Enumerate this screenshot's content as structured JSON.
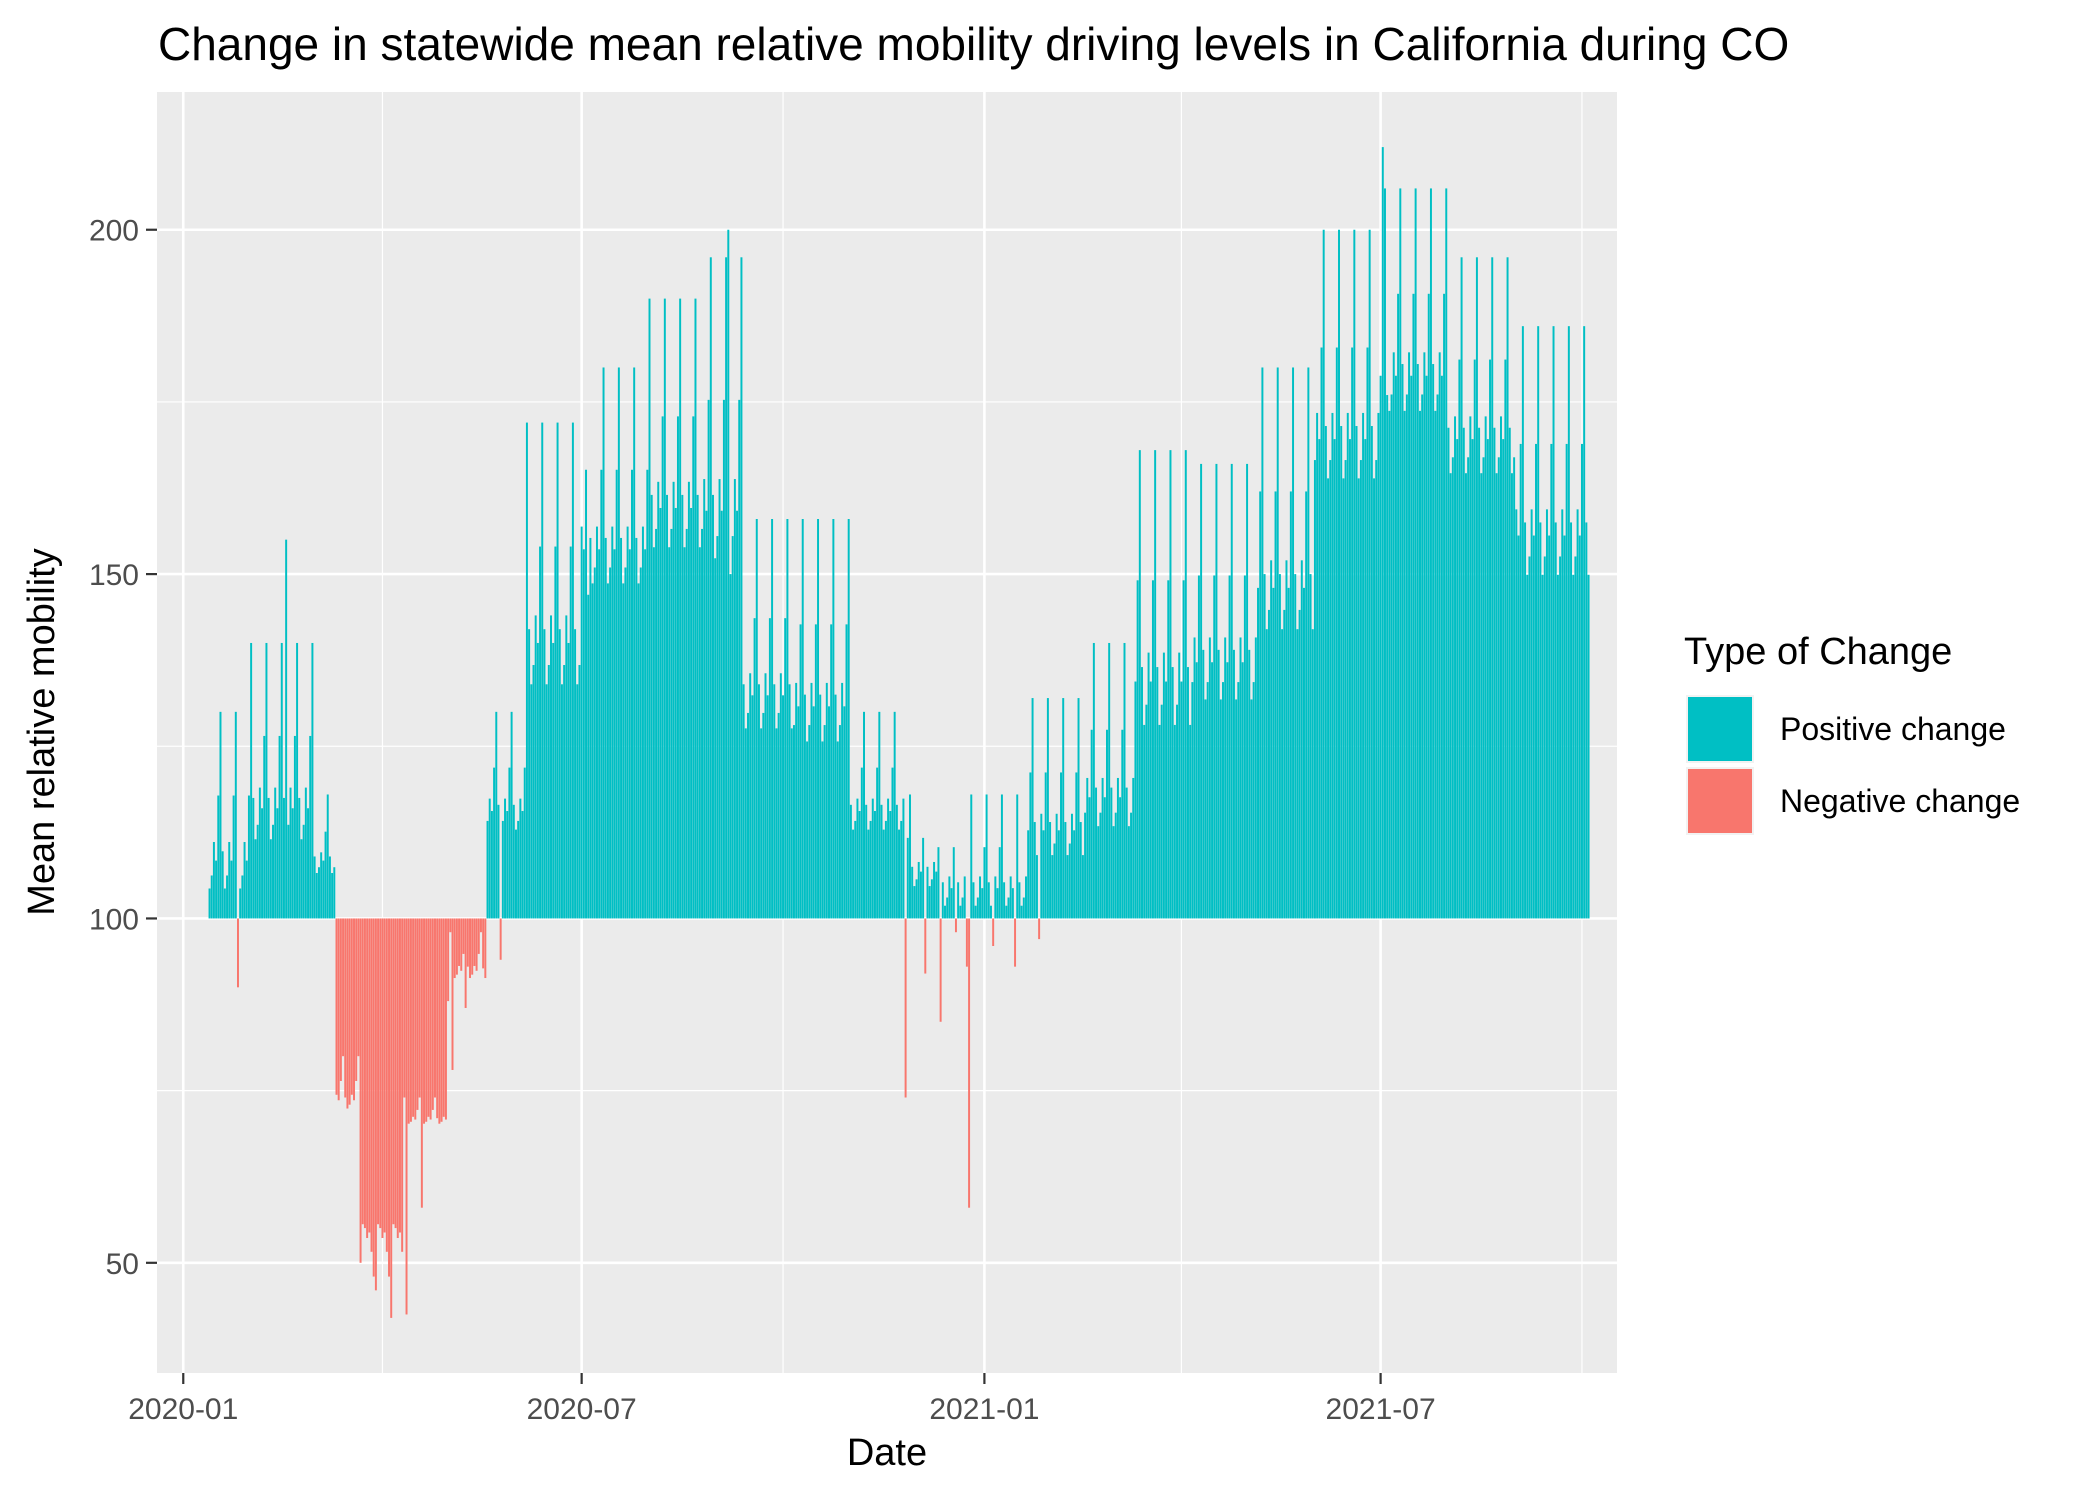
{
  "chart_data": {
    "type": "bar",
    "title": "Change in statewide mean relative mobility driving levels in California during CO",
    "xlabel": "Date",
    "ylabel": "Mean relative mobility",
    "baseline": 100,
    "x_start": "2020-01-13",
    "x_end": "2021-10-04",
    "xlim": [
      "2019-12-20",
      "2021-10-17"
    ],
    "ylim": [
      34,
      220
    ],
    "y_ticks": [
      50,
      100,
      150,
      200
    ],
    "y_minor_ticks": [
      75,
      125,
      175
    ],
    "x_ticks": [
      {
        "date": "2020-01-01",
        "label": "2020-01"
      },
      {
        "date": "2020-07-01",
        "label": "2020-07"
      },
      {
        "date": "2021-01-01",
        "label": "2021-01"
      },
      {
        "date": "2021-07-01",
        "label": "2021-07"
      }
    ],
    "x_minor_ticks": [
      "2020-04-01",
      "2020-10-01",
      "2021-04-01",
      "2021-10-01"
    ],
    "segments": [
      {
        "start": "2020-01-13",
        "end": "2020-01-31",
        "base": 103,
        "peak": 130
      },
      {
        "start": "2020-02-01",
        "end": "2020-02-29",
        "base": 110,
        "peak": 140
      },
      {
        "start": "2020-03-01",
        "end": "2020-03-10",
        "base": 106,
        "peak": 118
      },
      {
        "start": "2020-03-11",
        "end": "2020-03-22",
        "base": 72,
        "peak": 80
      },
      {
        "start": "2020-03-23",
        "end": "2020-04-10",
        "base": 56,
        "peak": 48
      },
      {
        "start": "2020-04-11",
        "end": "2020-04-30",
        "base": 70,
        "peak": 74
      },
      {
        "start": "2020-05-01",
        "end": "2020-05-18",
        "base": 91,
        "peak": 98
      },
      {
        "start": "2020-05-19",
        "end": "2020-06-05",
        "base": 112,
        "peak": 130
      },
      {
        "start": "2020-06-06",
        "end": "2020-06-30",
        "base": 132,
        "peak": 172
      },
      {
        "start": "2020-07-01",
        "end": "2020-07-31",
        "base": 147,
        "peak": 180
      },
      {
        "start": "2020-08-01",
        "end": "2020-08-25",
        "base": 152,
        "peak": 190
      },
      {
        "start": "2020-08-26",
        "end": "2020-09-12",
        "base": 150,
        "peak": 196
      },
      {
        "start": "2020-09-13",
        "end": "2020-10-05",
        "base": 126,
        "peak": 158
      },
      {
        "start": "2020-10-06",
        "end": "2020-10-31",
        "base": 124,
        "peak": 158
      },
      {
        "start": "2020-11-01",
        "end": "2020-11-25",
        "base": 112,
        "peak": 130
      },
      {
        "start": "2020-11-26",
        "end": "2020-12-10",
        "base": 104,
        "peak": 118
      },
      {
        "start": "2020-12-11",
        "end": "2020-12-31",
        "base": 101,
        "peak": 118
      },
      {
        "start": "2021-01-01",
        "end": "2021-01-20",
        "base": 101,
        "peak": 118
      },
      {
        "start": "2021-01-21",
        "end": "2021-02-15",
        "base": 108,
        "peak": 132
      },
      {
        "start": "2021-02-16",
        "end": "2021-03-10",
        "base": 112,
        "peak": 140
      },
      {
        "start": "2021-03-11",
        "end": "2021-04-05",
        "base": 126,
        "peak": 168
      },
      {
        "start": "2021-04-06",
        "end": "2021-05-05",
        "base": 130,
        "peak": 166
      },
      {
        "start": "2021-05-06",
        "end": "2021-05-31",
        "base": 140,
        "peak": 180
      },
      {
        "start": "2021-06-01",
        "end": "2021-06-30",
        "base": 162,
        "peak": 200
      },
      {
        "start": "2021-07-01",
        "end": "2021-07-31",
        "base": 172,
        "peak": 206
      },
      {
        "start": "2021-08-01",
        "end": "2021-08-31",
        "base": 163,
        "peak": 196
      },
      {
        "start": "2021-09-01",
        "end": "2021-10-04",
        "base": 148,
        "peak": 186
      }
    ],
    "outliers": [
      {
        "date": "2020-01-26",
        "value": 90
      },
      {
        "date": "2020-02-17",
        "value": 155
      },
      {
        "date": "2020-03-22",
        "value": 50
      },
      {
        "date": "2020-03-29",
        "value": 46
      },
      {
        "date": "2020-04-05",
        "value": 42
      },
      {
        "date": "2020-04-12",
        "value": 42.5
      },
      {
        "date": "2020-04-19",
        "value": 58
      },
      {
        "date": "2020-05-01",
        "value": 88
      },
      {
        "date": "2020-05-03",
        "value": 78
      },
      {
        "date": "2020-05-09",
        "value": 87
      },
      {
        "date": "2020-05-10",
        "value": 93
      },
      {
        "date": "2020-05-25",
        "value": 94
      },
      {
        "date": "2020-07-04",
        "value": 147
      },
      {
        "date": "2020-09-06",
        "value": 200
      },
      {
        "date": "2020-09-07",
        "value": 150
      },
      {
        "date": "2020-11-26",
        "value": 74
      },
      {
        "date": "2020-12-05",
        "value": 92
      },
      {
        "date": "2020-12-12",
        "value": 85
      },
      {
        "date": "2020-12-19",
        "value": 98
      },
      {
        "date": "2020-12-24",
        "value": 93
      },
      {
        "date": "2020-12-25",
        "value": 58
      },
      {
        "date": "2021-01-05",
        "value": 96
      },
      {
        "date": "2021-01-15",
        "value": 93
      },
      {
        "date": "2021-01-26",
        "value": 97
      },
      {
        "date": "2021-07-02",
        "value": 212
      },
      {
        "date": "2021-07-04",
        "value": 176
      }
    ],
    "legend": {
      "title": "Type of Change",
      "position": "right",
      "items": [
        {
          "label": "Positive change",
          "color": "#00BFC4"
        },
        {
          "label": "Negative change",
          "color": "#F8766D"
        }
      ]
    },
    "colors": {
      "positive": "#00BFC4",
      "negative": "#F8766D",
      "panel": "#EBEBEB",
      "grid": "#FFFFFF",
      "axis_text": "#4D4D4D",
      "tick": "#333333"
    },
    "grid": true
  }
}
